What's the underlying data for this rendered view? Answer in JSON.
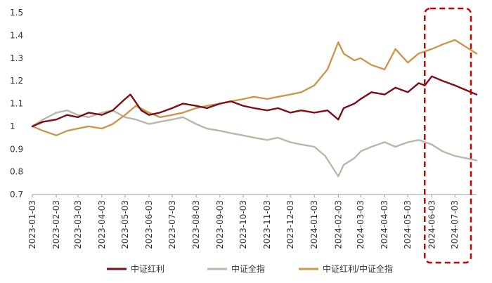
{
  "chart_data": {
    "type": "line",
    "title": "",
    "xlabel": "",
    "ylabel": "",
    "ylim": [
      0.7,
      1.5
    ],
    "y_ticks": [
      "1.5",
      "1.4",
      "1.3",
      "1.2",
      "1.1",
      "1",
      "0.9",
      "0.8",
      "0.7"
    ],
    "x_ticks": [
      "2023-01-03",
      "2023-02-03",
      "2023-03-03",
      "2023-04-03",
      "2023-05-03",
      "2023-06-03",
      "2023-07-03",
      "2023-08-03",
      "2023-09-03",
      "2023-10-03",
      "2023-11-03",
      "2023-12-03",
      "2024-01-03",
      "2024-02-03",
      "2024-03-03",
      "2024-04-03",
      "2024-05-03",
      "2024-06-03",
      "2024-07-03"
    ],
    "grid": false,
    "legend_position": "bottom",
    "highlight": {
      "from": "2024-06-03",
      "to": "2024-07-31",
      "style": "dashed",
      "color": "#cc0000"
    },
    "series": [
      {
        "name": "中证红利",
        "color": "#7b0e17",
        "values": [
          [
            "2023-01-03",
            1.0
          ],
          [
            "2023-01-17",
            1.02
          ],
          [
            "2023-02-03",
            1.03
          ],
          [
            "2023-02-17",
            1.05
          ],
          [
            "2023-03-03",
            1.04
          ],
          [
            "2023-03-17",
            1.06
          ],
          [
            "2023-04-03",
            1.05
          ],
          [
            "2023-04-17",
            1.07
          ],
          [
            "2023-05-03",
            1.12
          ],
          [
            "2023-05-10",
            1.14
          ],
          [
            "2023-05-24",
            1.07
          ],
          [
            "2023-06-03",
            1.05
          ],
          [
            "2023-06-17",
            1.06
          ],
          [
            "2023-07-03",
            1.08
          ],
          [
            "2023-07-17",
            1.1
          ],
          [
            "2023-08-03",
            1.09
          ],
          [
            "2023-08-17",
            1.08
          ],
          [
            "2023-09-03",
            1.1
          ],
          [
            "2023-09-17",
            1.11
          ],
          [
            "2023-10-03",
            1.09
          ],
          [
            "2023-10-17",
            1.08
          ],
          [
            "2023-11-03",
            1.07
          ],
          [
            "2023-11-17",
            1.08
          ],
          [
            "2023-12-03",
            1.06
          ],
          [
            "2023-12-17",
            1.07
          ],
          [
            "2024-01-03",
            1.06
          ],
          [
            "2024-01-20",
            1.07
          ],
          [
            "2024-02-03",
            1.03
          ],
          [
            "2024-02-10",
            1.08
          ],
          [
            "2024-02-24",
            1.1
          ],
          [
            "2024-03-03",
            1.12
          ],
          [
            "2024-03-17",
            1.15
          ],
          [
            "2024-04-03",
            1.14
          ],
          [
            "2024-04-17",
            1.17
          ],
          [
            "2024-05-03",
            1.15
          ],
          [
            "2024-05-17",
            1.19
          ],
          [
            "2024-05-25",
            1.18
          ],
          [
            "2024-06-03",
            1.22
          ],
          [
            "2024-06-17",
            1.2
          ],
          [
            "2024-07-03",
            1.18
          ],
          [
            "2024-07-17",
            1.16
          ],
          [
            "2024-07-31",
            1.14
          ]
        ]
      },
      {
        "name": "中证全指",
        "color": "#b7b8a7",
        "values": [
          [
            "2023-01-03",
            1.0
          ],
          [
            "2023-01-17",
            1.03
          ],
          [
            "2023-02-03",
            1.06
          ],
          [
            "2023-02-17",
            1.07
          ],
          [
            "2023-03-03",
            1.05
          ],
          [
            "2023-03-17",
            1.04
          ],
          [
            "2023-04-03",
            1.06
          ],
          [
            "2023-04-17",
            1.07
          ],
          [
            "2023-05-03",
            1.04
          ],
          [
            "2023-05-17",
            1.03
          ],
          [
            "2023-06-03",
            1.01
          ],
          [
            "2023-06-17",
            1.02
          ],
          [
            "2023-07-03",
            1.03
          ],
          [
            "2023-07-17",
            1.04
          ],
          [
            "2023-08-03",
            1.01
          ],
          [
            "2023-08-17",
            0.99
          ],
          [
            "2023-09-03",
            0.98
          ],
          [
            "2023-09-17",
            0.97
          ],
          [
            "2023-10-03",
            0.96
          ],
          [
            "2023-10-17",
            0.95
          ],
          [
            "2023-11-03",
            0.94
          ],
          [
            "2023-11-17",
            0.95
          ],
          [
            "2023-12-03",
            0.93
          ],
          [
            "2023-12-17",
            0.92
          ],
          [
            "2024-01-03",
            0.91
          ],
          [
            "2024-01-17",
            0.87
          ],
          [
            "2024-02-03",
            0.78
          ],
          [
            "2024-02-10",
            0.83
          ],
          [
            "2024-02-24",
            0.86
          ],
          [
            "2024-03-03",
            0.89
          ],
          [
            "2024-03-17",
            0.91
          ],
          [
            "2024-04-03",
            0.93
          ],
          [
            "2024-04-17",
            0.91
          ],
          [
            "2024-05-03",
            0.93
          ],
          [
            "2024-05-17",
            0.94
          ],
          [
            "2024-06-03",
            0.92
          ],
          [
            "2024-06-17",
            0.89
          ],
          [
            "2024-07-03",
            0.87
          ],
          [
            "2024-07-17",
            0.86
          ],
          [
            "2024-07-31",
            0.85
          ]
        ]
      },
      {
        "name": "中证红利/中证全指",
        "color": "#c9984b",
        "values": [
          [
            "2023-01-03",
            1.0
          ],
          [
            "2023-01-17",
            0.98
          ],
          [
            "2023-02-03",
            0.96
          ],
          [
            "2023-02-17",
            0.98
          ],
          [
            "2023-03-03",
            0.99
          ],
          [
            "2023-03-17",
            1.0
          ],
          [
            "2023-04-03",
            0.99
          ],
          [
            "2023-04-17",
            1.01
          ],
          [
            "2023-05-03",
            1.05
          ],
          [
            "2023-05-17",
            1.09
          ],
          [
            "2023-06-03",
            1.06
          ],
          [
            "2023-06-17",
            1.04
          ],
          [
            "2023-07-03",
            1.05
          ],
          [
            "2023-07-17",
            1.06
          ],
          [
            "2023-08-03",
            1.08
          ],
          [
            "2023-08-17",
            1.09
          ],
          [
            "2023-09-03",
            1.1
          ],
          [
            "2023-09-17",
            1.11
          ],
          [
            "2023-10-03",
            1.12
          ],
          [
            "2023-10-17",
            1.13
          ],
          [
            "2023-11-03",
            1.12
          ],
          [
            "2023-11-17",
            1.13
          ],
          [
            "2023-12-03",
            1.14
          ],
          [
            "2023-12-17",
            1.15
          ],
          [
            "2024-01-03",
            1.18
          ],
          [
            "2024-01-20",
            1.25
          ],
          [
            "2024-02-03",
            1.37
          ],
          [
            "2024-02-10",
            1.32
          ],
          [
            "2024-02-24",
            1.29
          ],
          [
            "2024-03-03",
            1.3
          ],
          [
            "2024-03-17",
            1.27
          ],
          [
            "2024-04-03",
            1.25
          ],
          [
            "2024-04-17",
            1.34
          ],
          [
            "2024-05-03",
            1.28
          ],
          [
            "2024-05-17",
            1.32
          ],
          [
            "2024-06-03",
            1.34
          ],
          [
            "2024-06-17",
            1.36
          ],
          [
            "2024-07-03",
            1.38
          ],
          [
            "2024-07-17",
            1.35
          ],
          [
            "2024-07-31",
            1.32
          ]
        ]
      }
    ]
  }
}
